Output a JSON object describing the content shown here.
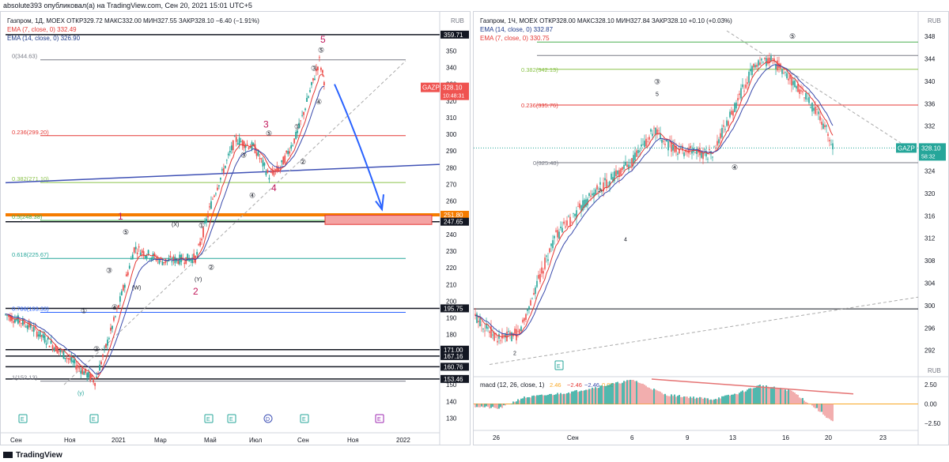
{
  "caption": "absolute393 опубликовал(а) на TradingView.com, Сен 20, 2021 15:01 UTC+5",
  "footer": "TradingView",
  "charts": [
    {
      "id": "daily",
      "header": {
        "line1": "Газпром, 1Д, MOEX  ОТКР329.72  МАКС332.00  МИН327.55  ЗАКР328.10  −6.40 (−1.91%)",
        "ema1": "EMA (7, close, 0)  332.49",
        "ema2": "EMA (14, close, 0)  326.90"
      },
      "currency": "RUB",
      "colors": {
        "up": "#26a69a",
        "down": "#ef5350",
        "ema7": "#e53935",
        "ema14": "#3949ab"
      },
      "y_ticks": [
        130,
        140,
        150,
        160,
        170,
        180,
        190,
        200,
        210,
        220,
        230,
        240,
        250,
        260,
        270,
        280,
        290,
        300,
        310,
        320,
        330,
        340,
        350
      ],
      "x_ticks": [
        "Сен",
        "Ноя",
        "2021",
        "Мар",
        "Май",
        "Июл",
        "Сен",
        "Ноя",
        "2022"
      ],
      "price_tag": {
        "symbol": "GAZP",
        "price": "328.10",
        "time": "10:48:31"
      },
      "level_tags": [
        "359.71",
        "251.80",
        "247.65",
        "195.75",
        "171.00",
        "167.16",
        "160.76",
        "153.46"
      ],
      "fib_labels": [
        "0(344.63)",
        "0.236(299.20)",
        "0.382(271.10)",
        "0.5(248.38)",
        "0.618(225.67)",
        "0.786(193.33)",
        "1(152.13)"
      ],
      "wave_labels_big": [
        "1",
        "2",
        "3",
        "4",
        "5"
      ],
      "wave_labels_small": [
        "①",
        "②",
        "③",
        "④",
        "⑤",
        "(W)",
        "(X)",
        "(Y)",
        "(y)"
      ],
      "events": [
        "E",
        "E",
        "E",
        "D",
        "E",
        "E"
      ],
      "chart_data": {
        "type": "line",
        "title": "Газпром, 1Д, MOEX",
        "ylim": [
          125,
          362
        ],
        "x": [
          "2020-09",
          "2020-10",
          "2020-11",
          "2020-12",
          "2021-01",
          "2021-02",
          "2021-03",
          "2021-04",
          "2021-05",
          "2021-06",
          "2021-07",
          "2021-08",
          "2021-09"
        ],
        "series": [
          {
            "name": "close",
            "values": [
              190,
              170,
              152,
              205,
              230,
              225,
              228,
              225,
              270,
              280,
              284,
              300,
              328.1
            ]
          }
        ],
        "hlines": [
          359.71,
          251.8,
          247.65,
          195.75,
          171.0,
          167.16,
          160.76,
          153.46
        ],
        "fib_levels": [
          344.63,
          299.2,
          271.1,
          248.38,
          225.67,
          193.33,
          152.13
        ]
      }
    },
    {
      "id": "hourly",
      "header": {
        "line1": "Газпром, 1Ч, MOEX  ОТКР328.00  МАКС328.10  МИН327.84  ЗАКР328.10  +0.10 (+0.03%)",
        "ema1": "EMA (14, close, 0)  332.87",
        "ema2": "EMA (7, close, 0)  330.75"
      },
      "currency": "RUB",
      "colors": {
        "up": "#26a69a",
        "down": "#ef5350",
        "ema7": "#e53935",
        "ema14": "#3949ab"
      },
      "y_ticks": [
        292,
        296,
        300,
        304,
        308,
        312,
        316,
        320,
        324,
        328,
        332,
        336,
        340,
        344,
        348
      ],
      "x_ticks": [
        "26",
        "Сен",
        "6",
        "9",
        "13",
        "16",
        "20",
        "23"
      ],
      "price_tag": {
        "symbol": "GAZP",
        "price": "328.10",
        "time": "58:32"
      },
      "fib_labels": [
        "0.382(342.13)",
        "0.236(335.76)",
        "0(325.48)"
      ],
      "wave_labels": [
        "2",
        "3",
        "4",
        "5",
        "③",
        "④",
        "⑤"
      ],
      "macd": {
        "label": "macd (12, 26, close, 1)",
        "values": [
          "2.46",
          "−2.46",
          "−2.46",
          "0.00"
        ],
        "ticks": [
          "2.50",
          "0.00",
          "−2.50"
        ]
      },
      "events": [
        "E"
      ],
      "chart_data": {
        "type": "line",
        "title": "Газпром, 1Ч, MOEX",
        "ylim": [
          289,
          349
        ],
        "x": [
          "Aug 25",
          "Aug 26",
          "Aug 30",
          "Sep 2",
          "Sep 6",
          "Sep 8",
          "Sep 9",
          "Sep 13",
          "Sep 15",
          "Sep 16",
          "Sep 17",
          "Sep 20"
        ],
        "series": [
          {
            "name": "close",
            "values": [
              298,
              294,
              300,
              310,
              322,
              330,
              325,
              326,
              343,
              342,
              336,
              328.1
            ]
          }
        ],
        "fib_levels": [
          342.13,
          335.76,
          325.48
        ]
      }
    }
  ]
}
